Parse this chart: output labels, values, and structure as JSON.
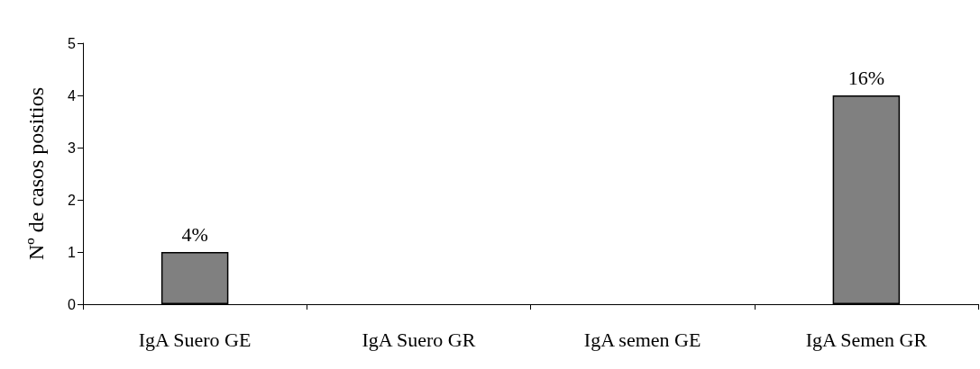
{
  "chart_data": {
    "type": "bar",
    "ylabel": "Nº de casos positios",
    "categories": [
      "IgA Suero GE",
      "IgA Suero GR",
      "IgA semen GE",
      "IgA Semen GR"
    ],
    "values": [
      1,
      0,
      0,
      4
    ],
    "annotations": [
      {
        "text": "4%",
        "x": "IgA Suero GE",
        "y": 1
      },
      {
        "text": "16%",
        "x": "IgA Semen GR",
        "y": 4
      }
    ],
    "color": "#808080",
    "ylim": [
      0,
      5
    ],
    "yticks": [
      0,
      1,
      2,
      3,
      4,
      5
    ],
    "grid": false
  }
}
